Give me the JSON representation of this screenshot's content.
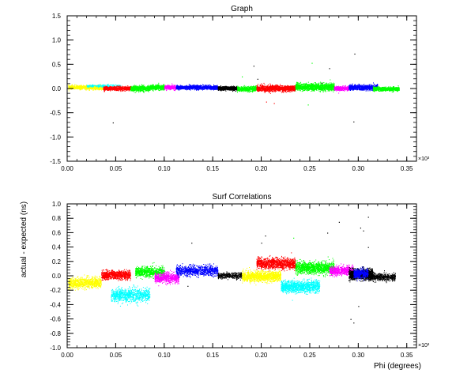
{
  "chart_data": [
    {
      "type": "scatter",
      "title": "Graph",
      "xlabel": "",
      "ylabel": "",
      "x_multiplier_label": "×10³",
      "xlim": [
        0.0,
        0.36
      ],
      "ylim": [
        -1.5,
        1.5
      ],
      "x_ticks": [
        "0.00",
        "0.05",
        "0.10",
        "0.15",
        "0.20",
        "0.25",
        "0.30",
        "0.35"
      ],
      "y_ticks": [
        "1.5",
        "1.0",
        "0.5",
        "0.0",
        "-0.5",
        "-1.0",
        "-1.5"
      ],
      "grid": false,
      "series": [
        {
          "color": "#ffff00",
          "x_range": [
            0.001,
            0.037
          ],
          "center": 0.02,
          "spread": 0.04,
          "density": 900
        },
        {
          "color": "#00ffff",
          "x_range": [
            0.02,
            0.055
          ],
          "center": 0.05,
          "spread": 0.03,
          "density": 200
        },
        {
          "color": "#ff0000",
          "x_range": [
            0.037,
            0.065
          ],
          "center": 0.0,
          "spread": 0.04,
          "density": 900
        },
        {
          "color": "#00ff00",
          "x_range": [
            0.065,
            0.085
          ],
          "center": 0.0,
          "spread": 0.05,
          "density": 700
        },
        {
          "color": "#00ff00",
          "x_range": [
            0.085,
            0.1
          ],
          "center": 0.02,
          "spread": 0.05,
          "density": 500
        },
        {
          "color": "#ff00ff",
          "x_range": [
            0.1,
            0.112
          ],
          "center": 0.02,
          "spread": 0.04,
          "density": 400
        },
        {
          "color": "#0000ff",
          "x_range": [
            0.112,
            0.155
          ],
          "center": 0.02,
          "spread": 0.04,
          "density": 1200
        },
        {
          "color": "#000000",
          "x_range": [
            0.155,
            0.175
          ],
          "center": 0.0,
          "spread": 0.04,
          "density": 600
        },
        {
          "color": "#00ff00",
          "x_range": [
            0.175,
            0.195
          ],
          "center": -0.01,
          "spread": 0.05,
          "density": 500
        },
        {
          "color": "#ff0000",
          "x_range": [
            0.195,
            0.235
          ],
          "center": 0.0,
          "spread": 0.06,
          "density": 1300
        },
        {
          "color": "#00ff00",
          "x_range": [
            0.235,
            0.275
          ],
          "center": 0.03,
          "spread": 0.07,
          "density": 1300
        },
        {
          "color": "#ff00ff",
          "x_range": [
            0.275,
            0.29
          ],
          "center": 0.0,
          "spread": 0.04,
          "density": 400
        },
        {
          "color": "#0000ff",
          "x_range": [
            0.29,
            0.32
          ],
          "center": 0.02,
          "spread": 0.05,
          "density": 900
        },
        {
          "color": "#00ff00",
          "x_range": [
            0.315,
            0.342
          ],
          "center": -0.01,
          "spread": 0.04,
          "density": 700
        }
      ],
      "outliers": [
        {
          "x": 0.047,
          "y": -0.7,
          "color": "#000000"
        },
        {
          "x": 0.192,
          "y": 0.47,
          "color": "#000000"
        },
        {
          "x": 0.196,
          "y": 0.2,
          "color": "#000000"
        },
        {
          "x": 0.205,
          "y": -0.27,
          "color": "#ff0000"
        },
        {
          "x": 0.213,
          "y": -0.3,
          "color": "#ff0000"
        },
        {
          "x": 0.248,
          "y": -0.33,
          "color": "#00ff00"
        },
        {
          "x": 0.252,
          "y": 0.53,
          "color": "#00ff00"
        },
        {
          "x": 0.27,
          "y": 0.42,
          "color": "#000000"
        },
        {
          "x": 0.262,
          "y": 0.12,
          "color": "#000000"
        },
        {
          "x": 0.295,
          "y": -0.68,
          "color": "#000000"
        },
        {
          "x": 0.296,
          "y": 0.72,
          "color": "#000000"
        },
        {
          "x": 0.18,
          "y": 0.25,
          "color": "#00ff00"
        }
      ]
    },
    {
      "type": "scatter",
      "title": "Surf Correlations",
      "xlabel": "Phi (degrees)",
      "ylabel": "actual - expected (ns)",
      "x_multiplier_label": "×10³",
      "xlim": [
        0.0,
        0.36
      ],
      "ylim": [
        -1.0,
        1.0
      ],
      "x_ticks": [
        "0.00",
        "0.05",
        "0.10",
        "0.15",
        "0.20",
        "0.25",
        "0.30",
        "0.35"
      ],
      "y_ticks": [
        "1.0",
        "0.8",
        "0.6",
        "0.4",
        "0.2",
        "0.0",
        "-0.2",
        "-0.4",
        "-0.6",
        "-0.8",
        "-1.0"
      ],
      "grid": false,
      "series": [
        {
          "color": "#ffff00",
          "x_range": [
            0.001,
            0.035
          ],
          "center": -0.1,
          "spread": 0.07,
          "density": 900
        },
        {
          "color": "#ff0000",
          "x_range": [
            0.035,
            0.065
          ],
          "center": 0.01,
          "spread": 0.06,
          "density": 900
        },
        {
          "color": "#00ffff",
          "x_range": [
            0.045,
            0.085
          ],
          "center": -0.27,
          "spread": 0.09,
          "density": 900
        },
        {
          "color": "#00ff00",
          "x_range": [
            0.07,
            0.1
          ],
          "center": 0.05,
          "spread": 0.07,
          "density": 800
        },
        {
          "color": "#ff00ff",
          "x_range": [
            0.09,
            0.115
          ],
          "center": -0.03,
          "spread": 0.07,
          "density": 700
        },
        {
          "color": "#0000ff",
          "x_range": [
            0.112,
            0.155
          ],
          "center": 0.07,
          "spread": 0.07,
          "density": 900
        },
        {
          "color": "#000000",
          "x_range": [
            0.155,
            0.18
          ],
          "center": 0.0,
          "spread": 0.04,
          "density": 400
        },
        {
          "color": "#ffff00",
          "x_range": [
            0.18,
            0.22
          ],
          "center": -0.01,
          "spread": 0.07,
          "density": 1300
        },
        {
          "color": "#ff0000",
          "x_range": [
            0.195,
            0.235
          ],
          "center": 0.17,
          "spread": 0.07,
          "density": 1200
        },
        {
          "color": "#00ffff",
          "x_range": [
            0.22,
            0.26
          ],
          "center": -0.15,
          "spread": 0.08,
          "density": 1200
        },
        {
          "color": "#00ff00",
          "x_range": [
            0.235,
            0.275
          ],
          "center": 0.11,
          "spread": 0.08,
          "density": 1200
        },
        {
          "color": "#ff00ff",
          "x_range": [
            0.27,
            0.295
          ],
          "center": 0.07,
          "spread": 0.06,
          "density": 700
        },
        {
          "color": "#000000",
          "x_range": [
            0.29,
            0.315
          ],
          "center": 0.02,
          "spread": 0.07,
          "density": 1300
        },
        {
          "color": "#0000ff",
          "x_range": [
            0.295,
            0.31
          ],
          "center": 0.03,
          "spread": 0.06,
          "density": 500
        },
        {
          "color": "#000000",
          "x_range": [
            0.31,
            0.338
          ],
          "center": -0.02,
          "spread": 0.05,
          "density": 500
        }
      ],
      "outliers": [
        {
          "x": 0.128,
          "y": 0.46,
          "color": "#000000"
        },
        {
          "x": 0.124,
          "y": -0.14,
          "color": "#000000"
        },
        {
          "x": 0.2,
          "y": 0.46,
          "color": "#000000"
        },
        {
          "x": 0.204,
          "y": 0.56,
          "color": "#000000"
        },
        {
          "x": 0.233,
          "y": 0.53,
          "color": "#00ff00"
        },
        {
          "x": 0.268,
          "y": 0.6,
          "color": "#000000"
        },
        {
          "x": 0.28,
          "y": 0.75,
          "color": "#000000"
        },
        {
          "x": 0.292,
          "y": -0.6,
          "color": "#000000"
        },
        {
          "x": 0.295,
          "y": -0.65,
          "color": "#000000"
        },
        {
          "x": 0.302,
          "y": 0.67,
          "color": "#000000"
        },
        {
          "x": 0.305,
          "y": 0.63,
          "color": "#000000"
        },
        {
          "x": 0.31,
          "y": 0.4,
          "color": "#000000"
        },
        {
          "x": 0.3,
          "y": -0.42,
          "color": "#000000"
        },
        {
          "x": 0.31,
          "y": 0.82,
          "color": "#000000"
        }
      ]
    }
  ]
}
